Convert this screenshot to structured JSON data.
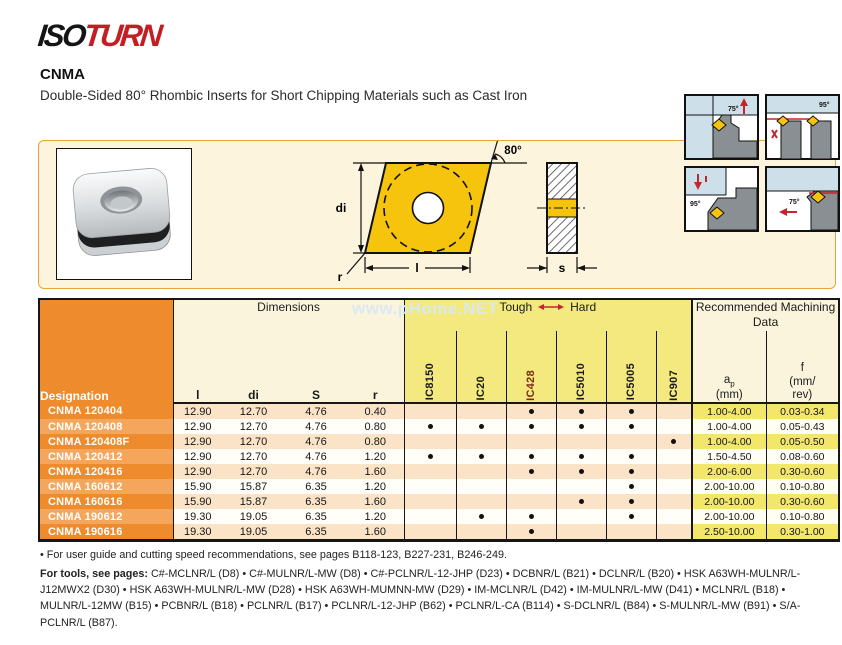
{
  "colors": {
    "orange_header": "#ee8c2d",
    "orange_light_row": "#f4a75c",
    "cream": "#fbf4dc",
    "yellow": "#f3e97e",
    "yellow_cell": "#f2e76b",
    "peach_row": "#fae3c6",
    "logo_red": "#c41e25",
    "arrow_red": "#c1272d",
    "grade_highlight_color": "#7c2a18",
    "insert_yellow": "#f6c40d",
    "panel_bg": "#fcf4dc",
    "panel_border": "#e8a33d"
  },
  "header": {
    "logo_iso": "ISO",
    "logo_turn": "TURN",
    "title": "CNMA",
    "subtitle": "Double-Sided 80° Rhombic Inserts for Short Chipping Materials such as Cast Iron"
  },
  "watermark": "www.pHome.NET",
  "drawing": {
    "angle_label": "80°",
    "di_label": "di",
    "l_label": "l",
    "r_label": "r",
    "s_label": "s"
  },
  "app_diagrams": [
    {
      "angle": "75°"
    },
    {
      "angle": "95°"
    },
    {
      "angle": "95°"
    },
    {
      "angle": "75°"
    }
  ],
  "table": {
    "designation_header": "Designation",
    "dimensions_header": "Dimensions",
    "dim_cols": [
      "l",
      "di",
      "S",
      "r"
    ],
    "tough_label": "Tough",
    "hard_label": "Hard",
    "grades": [
      "IC8150",
      "IC20",
      "IC428",
      "IC5010",
      "IC5005",
      "IC907"
    ],
    "grade_highlight": "IC428",
    "machining_header": "Recommended Machining Data",
    "ap_base": "a",
    "ap_sub": "p",
    "ap_unit": "(mm)",
    "f_base": "f",
    "f_unit_1": "(mm/",
    "f_unit_2": "rev)",
    "rows": [
      {
        "designation": "CNMA 120404",
        "l": "12.90",
        "di": "12.70",
        "s": "4.76",
        "r": "0.40",
        "dots": [
          0,
          0,
          1,
          1,
          1,
          0
        ],
        "ap": "1.00-4.00",
        "f": "0.03-0.34"
      },
      {
        "designation": "CNMA 120408",
        "l": "12.90",
        "di": "12.70",
        "s": "4.76",
        "r": "0.80",
        "dots": [
          1,
          1,
          1,
          1,
          1,
          0
        ],
        "ap": "1.00-4.00",
        "f": "0.05-0.43"
      },
      {
        "designation": "CNMA 120408F",
        "l": "12.90",
        "di": "12.70",
        "s": "4.76",
        "r": "0.80",
        "dots": [
          0,
          0,
          0,
          0,
          0,
          1
        ],
        "ap": "1.00-4.00",
        "f": "0.05-0.50"
      },
      {
        "designation": "CNMA 120412",
        "l": "12.90",
        "di": "12.70",
        "s": "4.76",
        "r": "1.20",
        "dots": [
          1,
          1,
          1,
          1,
          1,
          0
        ],
        "ap": "1.50-4.50",
        "f": "0.08-0.60"
      },
      {
        "designation": "CNMA 120416",
        "l": "12.90",
        "di": "12.70",
        "s": "4.76",
        "r": "1.60",
        "dots": [
          0,
          0,
          1,
          1,
          1,
          0
        ],
        "ap": "2.00-6.00",
        "f": "0.30-0.60"
      },
      {
        "designation": "CNMA 160612",
        "l": "15.90",
        "di": "15.87",
        "s": "6.35",
        "r": "1.20",
        "dots": [
          0,
          0,
          0,
          0,
          1,
          0
        ],
        "ap": "2.00-10.00",
        "f": "0.10-0.80"
      },
      {
        "designation": "CNMA 160616",
        "l": "15.90",
        "di": "15.87",
        "s": "6.35",
        "r": "1.60",
        "dots": [
          0,
          0,
          0,
          1,
          1,
          0
        ],
        "ap": "2.00-10.00",
        "f": "0.30-0.60"
      },
      {
        "designation": "CNMA 190612",
        "l": "19.30",
        "di": "19.05",
        "s": "6.35",
        "r": "1.20",
        "dots": [
          0,
          1,
          1,
          0,
          1,
          0
        ],
        "ap": "2.00-10.00",
        "f": "0.10-0.80"
      },
      {
        "designation": "CNMA 190616",
        "l": "19.30",
        "di": "19.05",
        "s": "6.35",
        "r": "1.60",
        "dots": [
          0,
          0,
          1,
          0,
          0,
          0
        ],
        "ap": "2.50-10.00",
        "f": "0.30-1.00"
      }
    ]
  },
  "notes": {
    "guide": "• For user guide and cutting speed recommendations, see pages B118-123, B227-231, B246-249.",
    "tools_label": "For tools, see pages:",
    "tools": " C#-MCLNR/L (D8) • C#-MULNR/L-MW (D8) • C#-PCLNR/L-12-JHP (D23) • DCBNR/L (B21) • DCLNR/L (B20) • HSK A63WH-MULNR/L-J12MWX2 (D30) • HSK A63WH-MULNR/L-MW (D28) • HSK A63WH-MUMNN-MW (D29) • IM-MCLNR/L (D42) • IM-MULNR/L-MW (D41) • MCLNR/L (B18) • MULNR/L-12MW (B15) • PCBNR/L (B18) • PCLNR/L (B17) • PCLNR/L-12-JHP (B62) • PCLNR/L-CA (B114) • S-DCLNR/L (B84) • S-MULNR/L-MW (B91) • S/A-PCLNR/L (B87)."
  }
}
